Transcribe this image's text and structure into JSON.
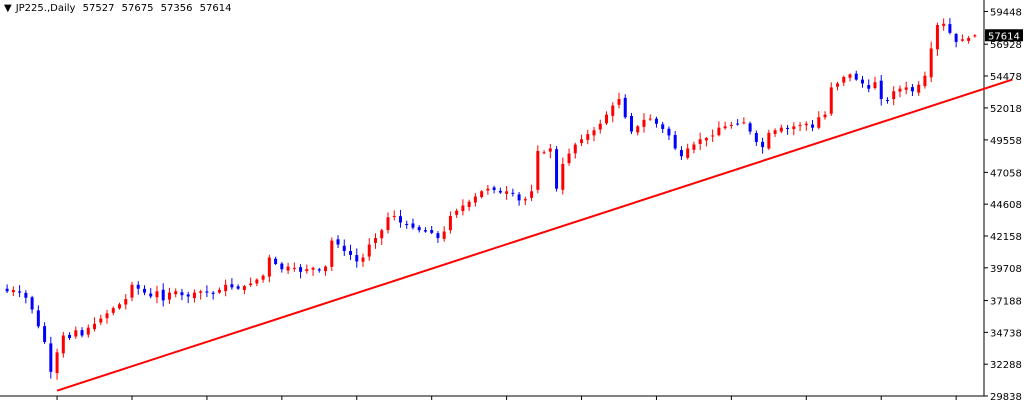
{
  "window": {
    "symbol_menu_icon": "triangle-down-icon",
    "symbol": "JP225.,Daily",
    "ohlc": [
      "57527",
      "57675",
      "57356",
      "57614"
    ]
  },
  "colors": {
    "bull": "#ff0000",
    "bear": "#0000ff",
    "trendline": "#ff0000",
    "axis": "#000000",
    "price_label_bg": "#000000",
    "price_label_text": "#ffffff"
  },
  "chart_data": {
    "type": "candlestick",
    "title": "",
    "symbol": "JP225.",
    "timeframe": "Daily",
    "xlabel": "",
    "ylabel": "",
    "ylim": [
      29838,
      60175
    ],
    "y_ticks": [
      59448,
      56928,
      54478,
      52018,
      49558,
      47058,
      44608,
      42158,
      39708,
      37188,
      34738,
      32288,
      29838
    ],
    "last_price": 57614,
    "grid": false,
    "close": [
      37900,
      38000,
      37800,
      37400,
      36500,
      35200,
      34000,
      31700,
      33200,
      34500,
      34300,
      34900,
      34500,
      35100,
      35400,
      35800,
      36200,
      36600,
      36900,
      37300,
      38400,
      38100,
      37800,
      37500,
      37900,
      37200,
      37800,
      37900,
      37600,
      37500,
      37800,
      37900,
      37800,
      37700,
      38000,
      38400,
      38200,
      38100,
      38300,
      38500,
      38800,
      39100,
      40500,
      40000,
      39600,
      39800,
      39700,
      39400,
      39600,
      39700,
      39500,
      39800,
      41800,
      41500,
      41000,
      40700,
      40200,
      40500,
      41500,
      42000,
      42600,
      43600,
      43700,
      43200,
      43000,
      42800,
      42600,
      42500,
      42400,
      42000,
      42500,
      43700,
      44100,
      44500,
      44800,
      45200,
      45600,
      45800,
      45700,
      45500,
      45600,
      45400,
      44900,
      45000,
      45600,
      48700,
      48600,
      48900,
      45800,
      47700,
      48500,
      49200,
      49600,
      50000,
      50300,
      50800,
      51500,
      52200,
      52700,
      51300,
      50200,
      50600,
      51100,
      51200,
      50800,
      50400,
      49900,
      48900,
      48300,
      48900,
      49200,
      49600,
      49700,
      49900,
      50500,
      50600,
      50700,
      50800,
      50900,
      50200,
      49400,
      49000,
      50100,
      50300,
      50500,
      50400,
      50600,
      50700,
      50800,
      50500,
      51300,
      51500,
      53600,
      53900,
      54400,
      54600,
      54200,
      53900,
      53500,
      54000,
      52700,
      52600,
      53300,
      53500,
      53600,
      53300,
      53800,
      54500,
      56600,
      58400,
      58500,
      57800,
      57100,
      57300,
      57400,
      57614
    ],
    "trendline": {
      "from": {
        "bar": 8,
        "price": 30250
      },
      "to": {
        "bar": 161,
        "price": 54200
      }
    }
  },
  "x_ticks": [
    8,
    20,
    32,
    44,
    56,
    68,
    80,
    92,
    104,
    116,
    128,
    140,
    152
  ]
}
